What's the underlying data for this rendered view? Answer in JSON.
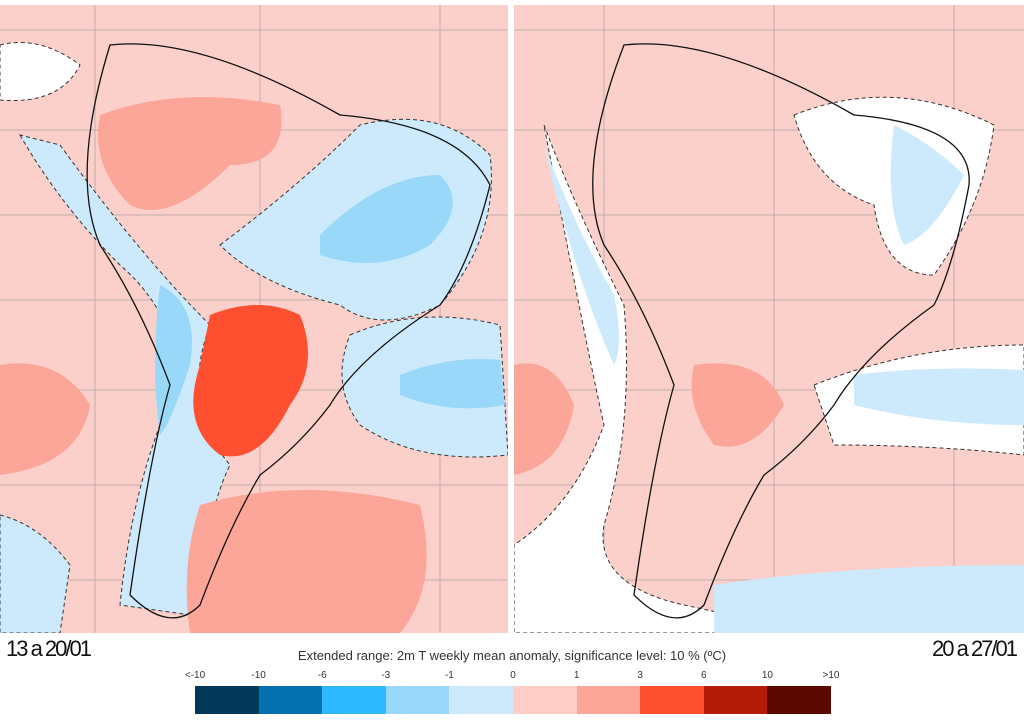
{
  "title": "Extended range: 2m T weekly mean anomaly, significance level: 10 % (ºC)",
  "panels": [
    {
      "label": "13 a 20/01"
    },
    {
      "label": "20 a 27/01"
    }
  ],
  "legend": {
    "ticks": [
      "<-10",
      "-10",
      "-6",
      "-3",
      "-1",
      "0",
      "1",
      "3",
      "6",
      "10",
      ">10"
    ],
    "colors": [
      "#023858",
      "#0570b0",
      "#2eb8ff",
      "#9ad8fa",
      "#cdeafc",
      "#fdcdc6",
      "#fba699",
      "#fe4f30",
      "#b41b06",
      "#5a0a00"
    ]
  }
}
